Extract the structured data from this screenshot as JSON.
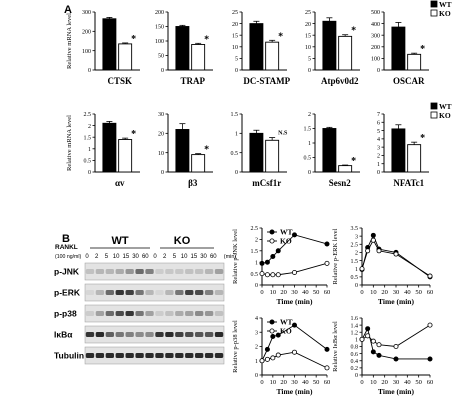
{
  "figure": {
    "panel_a_label": "A",
    "panel_b_label": "B",
    "legend_items": [
      {
        "name": "WT",
        "color": "#000000",
        "marker": "filled"
      },
      {
        "name": "KO",
        "color": "#ffffff",
        "marker": "open"
      }
    ]
  },
  "chart_data": [
    {
      "type": "bar",
      "title": "",
      "ylabel": "Relative mRNA level",
      "xlabel": "CTSK",
      "ylim": [
        0,
        300
      ],
      "yticks": [
        0,
        100,
        200,
        300
      ],
      "series": [
        {
          "name": "WT",
          "values": [
            265
          ],
          "errors": [
            7
          ]
        },
        {
          "name": "KO",
          "values": [
            135
          ],
          "errors": [
            5
          ]
        }
      ],
      "annotation": "*"
    },
    {
      "type": "bar",
      "title": "",
      "ylabel": "",
      "xlabel": "TRAP",
      "ylim": [
        0,
        200
      ],
      "yticks": [
        0,
        50,
        100,
        150,
        200
      ],
      "series": [
        {
          "name": "WT",
          "values": [
            150
          ],
          "errors": [
            4
          ]
        },
        {
          "name": "KO",
          "values": [
            88
          ],
          "errors": [
            4
          ]
        }
      ],
      "annotation": "*"
    },
    {
      "type": "bar",
      "title": "",
      "ylabel": "",
      "xlabel": "DC-STAMP",
      "ylim": [
        0,
        25
      ],
      "yticks": [
        0,
        5,
        10,
        15,
        20,
        25
      ],
      "series": [
        {
          "name": "WT",
          "values": [
            20
          ],
          "errors": [
            1
          ]
        },
        {
          "name": "KO",
          "values": [
            12
          ],
          "errors": [
            0.8
          ]
        }
      ],
      "annotation": "*"
    },
    {
      "type": "bar",
      "title": "",
      "ylabel": "",
      "xlabel": "Atp6v0d2",
      "ylim": [
        0,
        25
      ],
      "yticks": [
        0,
        5,
        10,
        15,
        20,
        25
      ],
      "series": [
        {
          "name": "WT",
          "values": [
            21
          ],
          "errors": [
            1.5
          ]
        },
        {
          "name": "KO",
          "values": [
            14.5
          ],
          "errors": [
            0.7
          ]
        }
      ],
      "annotation": "*"
    },
    {
      "type": "bar",
      "title": "",
      "ylabel": "",
      "xlabel": "OSCAR",
      "ylim": [
        0,
        500
      ],
      "yticks": [
        0,
        100,
        200,
        300,
        400,
        500
      ],
      "series": [
        {
          "name": "WT",
          "values": [
            370
          ],
          "errors": [
            40
          ]
        },
        {
          "name": "KO",
          "values": [
            135
          ],
          "errors": [
            10
          ]
        }
      ],
      "annotation": "*",
      "legend": "top-right"
    },
    {
      "type": "bar",
      "title": "",
      "ylabel": "Relative mRNA level",
      "xlabel": "αv",
      "ylim": [
        0,
        2.5
      ],
      "yticks": [
        0,
        0.5,
        1,
        1.5,
        2,
        2.5
      ],
      "series": [
        {
          "name": "WT",
          "values": [
            2.1
          ],
          "errors": [
            0.08
          ]
        },
        {
          "name": "KO",
          "values": [
            1.4
          ],
          "errors": [
            0.06
          ]
        }
      ],
      "annotation": "*"
    },
    {
      "type": "bar",
      "title": "",
      "ylabel": "",
      "xlabel": "β3",
      "ylim": [
        0,
        30
      ],
      "yticks": [
        0,
        10,
        20,
        30
      ],
      "series": [
        {
          "name": "WT",
          "values": [
            22
          ],
          "errors": [
            3
          ]
        },
        {
          "name": "KO",
          "values": [
            9
          ],
          "errors": [
            0.5
          ]
        }
      ],
      "annotation": "*"
    },
    {
      "type": "bar",
      "title": "",
      "ylabel": "",
      "xlabel": "mCsf1r",
      "ylim": [
        0,
        1.5
      ],
      "yticks": [
        0,
        0.5,
        1,
        1.5
      ],
      "series": [
        {
          "name": "WT",
          "values": [
            1.0
          ],
          "errors": [
            0.08
          ]
        },
        {
          "name": "KO",
          "values": [
            0.82
          ],
          "errors": [
            0.07
          ]
        }
      ],
      "annotation": "N.S"
    },
    {
      "type": "bar",
      "title": "",
      "ylabel": "",
      "xlabel": "Sesn2",
      "ylim": [
        0,
        2
      ],
      "yticks": [
        0,
        0.5,
        1,
        1.5,
        2
      ],
      "series": [
        {
          "name": "WT",
          "values": [
            1.5
          ],
          "errors": [
            0.04
          ]
        },
        {
          "name": "KO",
          "values": [
            0.22
          ],
          "errors": [
            0.02
          ]
        }
      ],
      "annotation": "*"
    },
    {
      "type": "bar",
      "title": "",
      "ylabel": "",
      "xlabel": "NFATc1",
      "ylim": [
        0,
        7
      ],
      "yticks": [
        0,
        1,
        2,
        3,
        4,
        5,
        6,
        7
      ],
      "series": [
        {
          "name": "WT",
          "values": [
            5.2
          ],
          "errors": [
            0.5
          ]
        },
        {
          "name": "KO",
          "values": [
            3.3
          ],
          "errors": [
            0.3
          ]
        }
      ],
      "annotation": "*",
      "legend": "top-right"
    },
    {
      "type": "line",
      "title": "",
      "xlabel": "Time (min)",
      "ylabel": "Relative p-JNK level",
      "x": [
        0,
        5,
        10,
        15,
        30,
        60
      ],
      "xlim": [
        0,
        60
      ],
      "xticks": [
        0,
        10,
        20,
        30,
        40,
        50,
        60
      ],
      "ylim": [
        0,
        2.5
      ],
      "yticks": [
        0,
        0.5,
        1,
        1.5,
        2,
        2.5
      ],
      "series": [
        {
          "name": "WT",
          "values": [
            0.95,
            1.0,
            1.25,
            1.5,
            2.2,
            1.8
          ]
        },
        {
          "name": "KO",
          "values": [
            0.5,
            0.45,
            0.45,
            0.45,
            0.55,
            0.95
          ]
        }
      ],
      "legend": "top-left"
    },
    {
      "type": "line",
      "title": "",
      "xlabel": "Time (min)",
      "ylabel": "Relative p-ERK level",
      "x": [
        0,
        5,
        10,
        15,
        30,
        60
      ],
      "xlim": [
        0,
        60
      ],
      "xticks": [
        0,
        10,
        20,
        30,
        40,
        50,
        60
      ],
      "ylim": [
        0,
        3.5
      ],
      "yticks": [
        0,
        0.5,
        1,
        1.5,
        2,
        2.5,
        3,
        3.5
      ],
      "series": [
        {
          "name": "WT",
          "values": [
            0.95,
            2.3,
            3.05,
            2.2,
            2.0,
            0.5
          ]
        },
        {
          "name": "KO",
          "values": [
            1.0,
            2.1,
            2.75,
            2.1,
            1.9,
            0.55
          ]
        }
      ]
    },
    {
      "type": "line",
      "title": "",
      "xlabel": "Time (min)",
      "ylabel": "Relative p-p38 level",
      "x": [
        0,
        5,
        10,
        15,
        30,
        60
      ],
      "xlim": [
        0,
        60
      ],
      "xticks": [
        0,
        10,
        20,
        30,
        40,
        50,
        60
      ],
      "ylim": [
        0,
        4
      ],
      "yticks": [
        0,
        1,
        2,
        3,
        4
      ],
      "series": [
        {
          "name": "WT",
          "values": [
            1.0,
            1.8,
            2.7,
            2.8,
            3.5,
            1.8
          ]
        },
        {
          "name": "KO",
          "values": [
            1.0,
            1.1,
            1.2,
            1.4,
            1.6,
            0.5
          ]
        }
      ],
      "legend": "top-left"
    },
    {
      "type": "line",
      "title": "",
      "xlabel": "Time (min)",
      "ylabel": "Relative IκBα level",
      "x": [
        0,
        5,
        10,
        15,
        30,
        60
      ],
      "xlim": [
        0,
        60
      ],
      "xticks": [
        0,
        10,
        20,
        30,
        40,
        50,
        60
      ],
      "ylim": [
        0,
        1.6
      ],
      "yticks": [
        0,
        0.2,
        0.4,
        0.6,
        0.8,
        1,
        1.2,
        1.4,
        1.6
      ],
      "series": [
        {
          "name": "WT",
          "values": [
            1.0,
            1.3,
            0.65,
            0.55,
            0.45,
            0.45
          ]
        },
        {
          "name": "KO",
          "values": [
            1.0,
            1.1,
            0.95,
            0.85,
            0.8,
            1.4
          ]
        }
      ]
    }
  ],
  "blot": {
    "rankl_label": "RANKL",
    "rankl_dose": "(100 ng/ml)",
    "group_wt": "WT",
    "group_ko": "KO",
    "timepoints": [
      "0",
      "2",
      "5",
      "10",
      "15",
      "30",
      "60",
      "0",
      "2",
      "5",
      "10",
      "15",
      "30",
      "60"
    ],
    "time_unit": "(min)",
    "rows": [
      {
        "label": "p-JNK",
        "intensity": [
          0.15,
          0.2,
          0.2,
          0.25,
          0.35,
          0.55,
          0.45,
          0.1,
          0.12,
          0.12,
          0.15,
          0.15,
          0.2,
          0.3
        ]
      },
      {
        "label": "p-ERK",
        "intensity": [
          0.05,
          0.2,
          0.55,
          0.8,
          0.75,
          0.5,
          0.2,
          0.05,
          0.2,
          0.5,
          0.75,
          0.7,
          0.45,
          0.2
        ]
      },
      {
        "label": "p-p38",
        "intensity": [
          0.1,
          0.3,
          0.55,
          0.7,
          0.8,
          0.5,
          0.3,
          0.1,
          0.15,
          0.25,
          0.3,
          0.4,
          0.35,
          0.15
        ]
      },
      {
        "label": "IκBα",
        "intensity": [
          0.8,
          0.85,
          0.6,
          0.5,
          0.45,
          0.4,
          0.4,
          0.8,
          0.85,
          0.75,
          0.7,
          0.65,
          0.65,
          0.85
        ]
      },
      {
        "label": "Tubulin",
        "intensity": [
          0.85,
          0.85,
          0.85,
          0.85,
          0.85,
          0.85,
          0.85,
          0.85,
          0.85,
          0.85,
          0.85,
          0.85,
          0.85,
          0.85
        ]
      }
    ]
  }
}
